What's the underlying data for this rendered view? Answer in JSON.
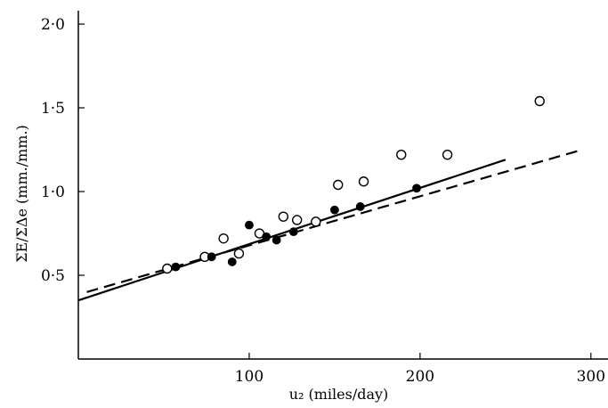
{
  "chart_data": {
    "type": "scatter",
    "xlabel": "u₂ (miles/day)",
    "ylabel": "ΣE/ΣΔe (mm./mm.)",
    "xlim": [
      0,
      310
    ],
    "ylim": [
      0,
      2.08
    ],
    "x_ticks": [
      100,
      200,
      300
    ],
    "x_tick_labels": [
      "100",
      "200",
      "300"
    ],
    "y_ticks": [
      0.5,
      1.0,
      1.5,
      2.0
    ],
    "y_tick_labels": [
      "0·5",
      "1·0",
      "1·5",
      "2·0"
    ],
    "grid": false,
    "series": [
      {
        "marker": "open-circle",
        "points": [
          [
            52,
            0.54
          ],
          [
            74,
            0.61
          ],
          [
            85,
            0.72
          ],
          [
            94,
            0.63
          ],
          [
            106,
            0.75
          ],
          [
            120,
            0.85
          ],
          [
            128,
            0.83
          ],
          [
            139,
            0.82
          ],
          [
            152,
            1.04
          ],
          [
            167,
            1.06
          ],
          [
            189,
            1.22
          ],
          [
            216,
            1.22
          ],
          [
            270,
            1.54
          ]
        ]
      },
      {
        "marker": "filled-circle",
        "points": [
          [
            57,
            0.55
          ],
          [
            78,
            0.61
          ],
          [
            90,
            0.58
          ],
          [
            100,
            0.8
          ],
          [
            110,
            0.73
          ],
          [
            116,
            0.71
          ],
          [
            126,
            0.76
          ],
          [
            150,
            0.89
          ],
          [
            165,
            0.91
          ],
          [
            198,
            1.02
          ]
        ]
      }
    ],
    "lines": [
      {
        "style": "solid",
        "x": [
          0,
          250
        ],
        "y": [
          0.35,
          1.19
        ]
      },
      {
        "style": "dashed",
        "x": [
          5,
          295
        ],
        "y": [
          0.4,
          1.25
        ]
      }
    ]
  }
}
